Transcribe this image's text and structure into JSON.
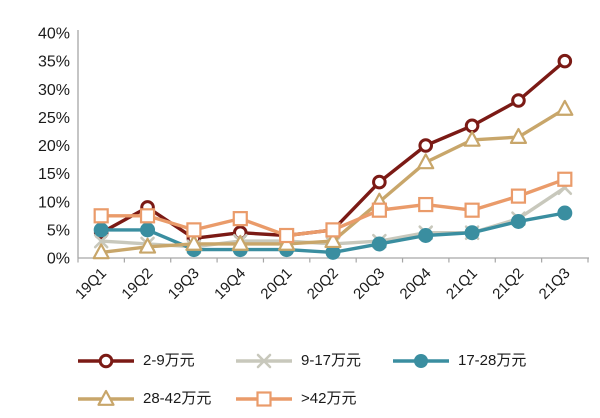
{
  "chart_data": {
    "type": "line",
    "categories": [
      "19Q1",
      "19Q2",
      "19Q3",
      "19Q4",
      "20Q1",
      "20Q2",
      "20Q3",
      "20Q4",
      "21Q1",
      "21Q2",
      "21Q3"
    ],
    "series": [
      {
        "name": "2-9万元",
        "color": "#7B1A15",
        "marker": "open-circle",
        "values": [
          4.5,
          9,
          3.5,
          4.5,
          4,
          5,
          13.5,
          20,
          23.5,
          28,
          35
        ]
      },
      {
        "name": "9-17万元",
        "color": "#C8C8BC",
        "marker": "x",
        "values": [
          3,
          2.5,
          2,
          3,
          3,
          2.5,
          3,
          4.5,
          4.5,
          7,
          12.5
        ]
      },
      {
        "name": "17-28万元",
        "color": "#3A8EA0",
        "marker": "filled-circle",
        "values": [
          5,
          5,
          1.5,
          1.5,
          1.5,
          1,
          2.5,
          4,
          4.5,
          6.5,
          8
        ]
      },
      {
        "name": "28-42万元",
        "color": "#C8A66A",
        "marker": "open-triangle",
        "values": [
          1,
          2,
          2.5,
          2.5,
          2.5,
          3,
          10,
          17,
          21,
          21.5,
          26.5
        ]
      },
      {
        "name": ">42万元",
        "color": "#EA9B6A",
        "marker": "open-square",
        "values": [
          7.5,
          7.5,
          5,
          7,
          4,
          5,
          8.5,
          9.5,
          8.5,
          11,
          14
        ]
      }
    ],
    "ylim": [
      0,
      40
    ],
    "ytick_step": 5,
    "ytick_labels": [
      "0%",
      "5%",
      "10%",
      "15%",
      "20%",
      "25%",
      "30%",
      "35%",
      "40%"
    ],
    "grid": false,
    "legend_position": "bottom",
    "axis_color": "#A6A6A6",
    "text_color": "#1A1A1A",
    "background": "#FFFFFF"
  }
}
